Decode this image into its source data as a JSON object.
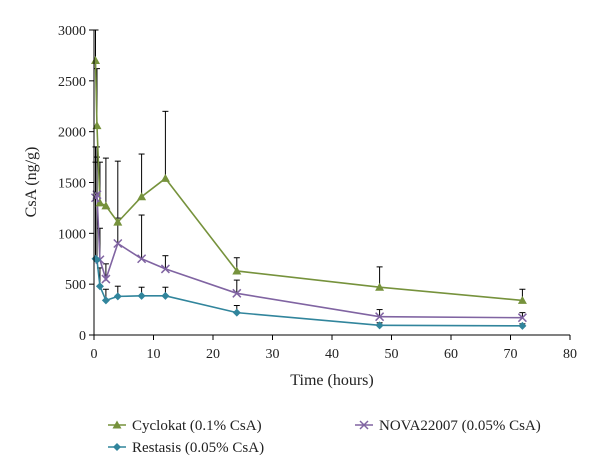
{
  "chart_data": {
    "type": "line",
    "title": "",
    "xlabel": "Time (hours)",
    "ylabel": "CsA (ng/g)",
    "xlim": [
      0,
      80
    ],
    "ylim": [
      0,
      3000
    ],
    "x_ticks": [
      0,
      10,
      20,
      30,
      40,
      50,
      60,
      70,
      80
    ],
    "y_ticks": [
      0,
      500,
      1000,
      1500,
      2000,
      2500,
      3000
    ],
    "grid": false,
    "legend_position": "bottom",
    "series": [
      {
        "name": "Cyclokat (0.1% CsA)",
        "color": "#76923c",
        "marker": "triangle",
        "x": [
          0.25,
          0.5,
          1,
          2,
          4,
          8,
          12,
          24,
          48,
          72
        ],
        "y": [
          2700,
          2060,
          1300,
          1270,
          1110,
          1360,
          1540,
          630,
          470,
          340
        ],
        "error_upper": [
          3000,
          2620,
          1700,
          1740,
          1710,
          1780,
          2200,
          760,
          670,
          450
        ]
      },
      {
        "name": "NOVA22007 (0.05% CsA)",
        "color": "#8064a2",
        "marker": "x",
        "x": [
          0.25,
          0.5,
          1,
          2,
          4,
          8,
          12,
          24,
          48,
          72
        ],
        "y": [
          1350,
          1380,
          740,
          550,
          900,
          750,
          650,
          410,
          180,
          170
        ],
        "error_upper": [
          1700,
          1750,
          1050,
          700,
          1150,
          1180,
          780,
          540,
          250,
          220
        ]
      },
      {
        "name": "Restasis (0.05% CsA)",
        "color": "#31859c",
        "marker": "diamond",
        "x": [
          0.25,
          0.5,
          1,
          2,
          4,
          8,
          12,
          24,
          48,
          72
        ],
        "y": [
          750,
          740,
          480,
          340,
          380,
          385,
          385,
          220,
          95,
          90
        ],
        "error_upper": [
          1850,
          1850,
          660,
          450,
          480,
          470,
          470,
          290,
          120,
          110
        ]
      }
    ]
  }
}
